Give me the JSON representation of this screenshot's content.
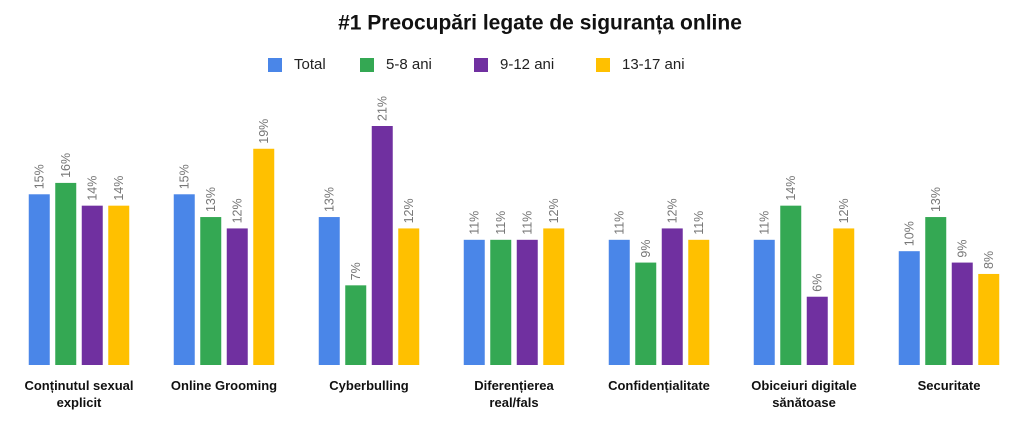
{
  "chart_data": {
    "type": "bar",
    "title": "#1 Preocupări legate de siguranța online",
    "categories": [
      "Conținutul sexual explicit",
      "Online Grooming",
      "Cyberbulling",
      "Diferențierea real/fals",
      "Confidențialitate",
      "Obiceiuri digitale sănătoase",
      "Securitate"
    ],
    "series": [
      {
        "name": "Total",
        "color": "#4a86e8",
        "values": [
          15,
          15,
          13,
          11,
          11,
          11,
          10
        ],
        "value_labels": [
          "15%",
          "15%",
          "13%",
          "11%",
          "11%",
          "11%",
          "10%"
        ]
      },
      {
        "name": "5-8 ani",
        "color": "#34a853",
        "values": [
          16,
          13,
          7,
          11,
          9,
          14,
          13
        ],
        "value_labels": [
          "16%",
          "13%",
          "7%",
          "11%",
          "9%",
          "14%",
          "13%"
        ]
      },
      {
        "name": "9-12 ani",
        "color": "#7030a0",
        "values": [
          14,
          12,
          21,
          11,
          12,
          6,
          9
        ],
        "value_labels": [
          "14%",
          "12%",
          "21%",
          "11%",
          "12%",
          "6%",
          "9%"
        ]
      },
      {
        "name": "13-17 ani",
        "color": "#ffc000",
        "values": [
          14,
          19,
          12,
          12,
          11,
          12,
          8
        ],
        "value_labels": [
          "14%",
          "19%",
          "12%",
          "12%",
          "11%",
          "12%",
          "8%"
        ]
      }
    ],
    "legend": "top"
  }
}
